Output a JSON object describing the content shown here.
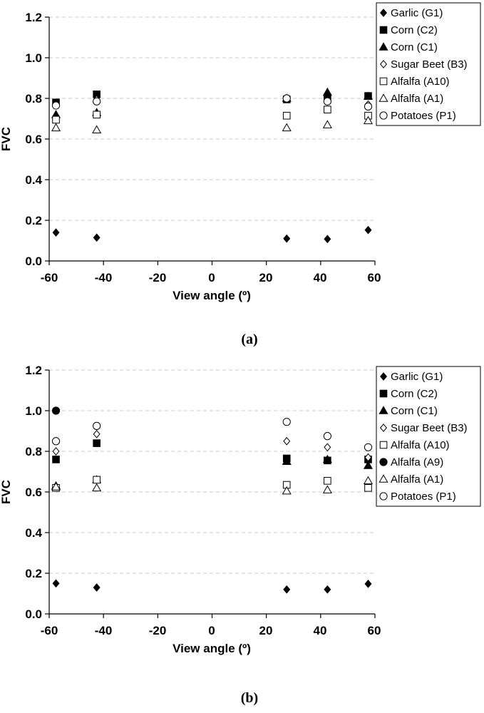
{
  "chart_data": [
    {
      "type": "scatter",
      "caption": "(a)",
      "xlabel": "View angle (º)",
      "ylabel": "FVC",
      "xlim": [
        -60,
        60
      ],
      "ylim": [
        0,
        1.2
      ],
      "xticks": [
        "-60",
        "-40",
        "-20",
        "0",
        "20",
        "40",
        "60"
      ],
      "yticks": [
        "0.0",
        "0.2",
        "0.4",
        "0.6",
        "0.8",
        "1.0",
        "1.2"
      ],
      "grid": true,
      "legend_position": "right",
      "series": [
        {
          "name": "Garlic (G1)",
          "marker": "diamond-filled",
          "x": [
            -57.5,
            -42.5,
            27.5,
            42.5,
            57.5
          ],
          "y": [
            0.14,
            0.115,
            0.11,
            0.108,
            0.152
          ]
        },
        {
          "name": "Corn (C2)",
          "marker": "square-filled",
          "x": [
            -57.5,
            -42.5,
            27.5,
            42.5,
            57.5
          ],
          "y": [
            0.78,
            0.82,
            0.795,
            0.805,
            0.812
          ]
        },
        {
          "name": "Corn (C1)",
          "marker": "triangle-filled",
          "x": [
            -57.5,
            -42.5,
            27.5,
            42.5,
            57.5
          ],
          "y": [
            0.72,
            0.73,
            0.8,
            0.83,
            0.81
          ]
        },
        {
          "name": "Sugar Beet (B3)",
          "marker": "diamond-open",
          "x": [
            -57.5,
            -42.5,
            27.5,
            42.5,
            57.5
          ],
          "y": [
            0.77,
            0.795,
            0.8,
            0.79,
            0.77
          ]
        },
        {
          "name": "Alfalfa (A10)",
          "marker": "square-open",
          "x": [
            -57.5,
            -42.5,
            27.5,
            42.5,
            57.5
          ],
          "y": [
            0.695,
            0.72,
            0.715,
            0.745,
            0.715
          ]
        },
        {
          "name": "Alfalfa (A1)",
          "marker": "triangle-open",
          "x": [
            -57.5,
            -42.5,
            27.5,
            42.5,
            57.5
          ],
          "y": [
            0.655,
            0.645,
            0.655,
            0.67,
            0.69
          ]
        },
        {
          "name": "Potatoes (P1)",
          "marker": "circle-open",
          "x": [
            -57.5,
            -42.5,
            27.5,
            42.5,
            57.5
          ],
          "y": [
            0.765,
            0.785,
            0.8,
            0.785,
            0.76
          ]
        }
      ]
    },
    {
      "type": "scatter",
      "caption": "(b)",
      "xlabel": "View angle (º)",
      "ylabel": "FVC",
      "xlim": [
        -60,
        60
      ],
      "ylim": [
        0,
        1.2
      ],
      "xticks": [
        "-60",
        "-40",
        "-20",
        "0",
        "20",
        "40",
        "60"
      ],
      "yticks": [
        "0.0",
        "0.2",
        "0.4",
        "0.6",
        "0.8",
        "1.0",
        "1.2"
      ],
      "grid": true,
      "legend_position": "right",
      "series": [
        {
          "name": "Garlic (G1)",
          "marker": "diamond-filled",
          "x": [
            -57.5,
            -42.5,
            27.5,
            42.5,
            57.5
          ],
          "y": [
            0.15,
            0.13,
            0.12,
            0.12,
            0.148
          ]
        },
        {
          "name": "Corn (C2)",
          "marker": "square-filled",
          "x": [
            -57.5,
            -42.5,
            27.5,
            42.5,
            57.5
          ],
          "y": [
            0.76,
            0.84,
            0.765,
            0.755,
            0.76
          ]
        },
        {
          "name": "Corn (C1)",
          "marker": "triangle-filled",
          "x": [
            -57.5,
            -42.5,
            27.5,
            42.5,
            57.5
          ],
          "y": [
            0.63,
            0.66,
            0.75,
            0.76,
            0.73
          ]
        },
        {
          "name": "Sugar Beet (B3)",
          "marker": "diamond-open",
          "x": [
            -57.5,
            -42.5,
            27.5,
            42.5,
            57.5
          ],
          "y": [
            0.8,
            0.885,
            0.85,
            0.82,
            0.77
          ]
        },
        {
          "name": "Alfalfa (A10)",
          "marker": "square-open",
          "x": [
            -57.5,
            -42.5,
            27.5,
            42.5,
            57.5
          ],
          "y": [
            0.62,
            0.66,
            0.635,
            0.655,
            0.62
          ]
        },
        {
          "name": "Alfalfa (A9)",
          "marker": "circle-filled",
          "x": [
            -57.5
          ],
          "y": [
            1.0
          ]
        },
        {
          "name": "Alfalfa (A1)",
          "marker": "triangle-open",
          "x": [
            -57.5,
            -42.5,
            27.5,
            42.5,
            57.5
          ],
          "y": [
            0.625,
            0.62,
            0.605,
            0.61,
            0.655
          ]
        },
        {
          "name": "Potatoes (P1)",
          "marker": "circle-open",
          "x": [
            -57.5,
            -42.5,
            27.5,
            42.5,
            57.5
          ],
          "y": [
            0.85,
            0.925,
            0.945,
            0.875,
            0.82
          ]
        }
      ]
    }
  ]
}
